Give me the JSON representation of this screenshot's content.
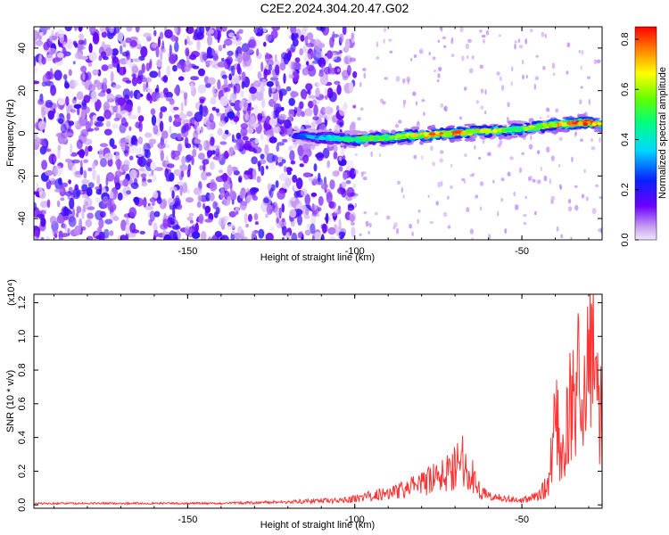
{
  "title": "C2E2.2024.304.20.47.G02",
  "colors": {
    "signal_line": "#ff3333",
    "axes": "#000000"
  },
  "chart_data": [
    {
      "type": "heatmap",
      "xlabel": "Height of straight line (km)",
      "ylabel": "Frequency (Hz)",
      "xlim": [
        -196,
        -26
      ],
      "ylim": [
        -50,
        50
      ],
      "x_ticks": [
        -150,
        -100,
        -50
      ],
      "x_tick_labels": [
        "-150",
        "-100",
        "-50"
      ],
      "y_ticks": [
        40,
        20,
        0,
        -20,
        -40
      ],
      "y_tick_labels": [
        "40",
        "20",
        "0",
        "-20",
        "-40"
      ],
      "colorbar": {
        "label": "Normalized spectral amplitude",
        "range": [
          0.0,
          0.85
        ],
        "ticks": [
          0.0,
          0.2,
          0.4,
          0.6,
          0.8
        ],
        "tick_labels": [
          "0.0",
          "0.2",
          "0.4",
          "0.6",
          "0.8"
        ],
        "colormap": "rainbow"
      },
      "noise_region": {
        "x_range": [
          -196,
          -100
        ],
        "amplitude": 0.1
      },
      "signal_track": {
        "x": [
          -118,
          -110,
          -100,
          -90,
          -80,
          -70,
          -60,
          -50,
          -40,
          -30,
          -26
        ],
        "y": [
          -1,
          -2,
          -3,
          -2,
          -1,
          0,
          1,
          2,
          4,
          5,
          4
        ],
        "amplitude": [
          0.25,
          0.4,
          0.55,
          0.6,
          0.75,
          0.8,
          0.65,
          0.6,
          0.8,
          0.85,
          0.75
        ]
      }
    },
    {
      "type": "line",
      "xlabel": "Height of straight line (km)",
      "ylabel": "SNR (10 * v/v)",
      "y_scale_note": "(x10⁴)",
      "xlim": [
        -196,
        -26
      ],
      "ylim": [
        -0.02,
        1.25
      ],
      "x_ticks": [
        -150,
        -100,
        -50
      ],
      "x_tick_labels": [
        "-150",
        "-100",
        "-50"
      ],
      "y_ticks": [
        0.0,
        0.2,
        0.4,
        0.6,
        0.8,
        1.0,
        1.2
      ],
      "y_tick_labels": [
        "0.0",
        "0.2",
        "0.4",
        "0.6",
        "0.8",
        "1.0",
        "1.2"
      ],
      "grid": false,
      "series": [
        {
          "color": "#ff3333",
          "x": [
            -196,
            -180,
            -160,
            -140,
            -120,
            -105,
            -100,
            -95,
            -90,
            -85,
            -80,
            -75,
            -72,
            -70,
            -68,
            -66,
            -64,
            -62,
            -60,
            -55,
            -50,
            -45,
            -42,
            -40,
            -38,
            -36,
            -34,
            -32,
            -30,
            -29,
            -28,
            -27,
            -26
          ],
          "y": [
            0.01,
            0.01,
            0.01,
            0.01,
            0.02,
            0.03,
            0.04,
            0.06,
            0.08,
            0.1,
            0.14,
            0.18,
            0.22,
            0.26,
            0.3,
            0.24,
            0.16,
            0.08,
            0.06,
            0.04,
            0.03,
            0.06,
            0.14,
            0.58,
            0.3,
            0.62,
            0.75,
            0.9,
            1.0,
            1.25,
            0.95,
            0.7,
            0.5
          ]
        }
      ]
    }
  ]
}
